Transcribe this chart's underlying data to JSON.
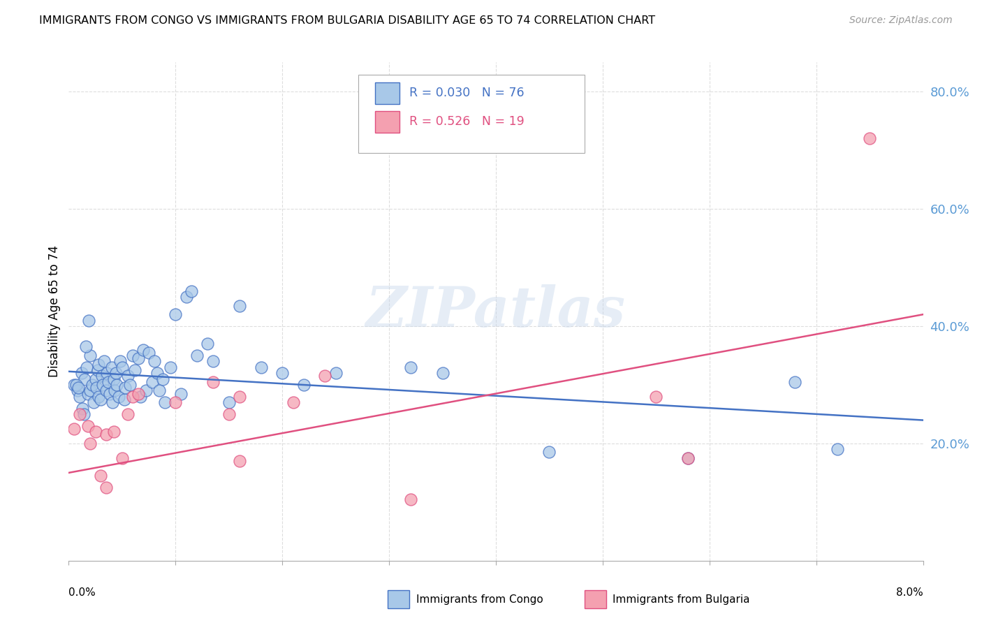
{
  "title": "IMMIGRANTS FROM CONGO VS IMMIGRANTS FROM BULGARIA DISABILITY AGE 65 TO 74 CORRELATION CHART",
  "source": "Source: ZipAtlas.com",
  "ylabel": "Disability Age 65 to 74",
  "legend_label1": "Immigrants from Congo",
  "legend_label2": "Immigrants from Bulgaria",
  "R1": "0.030",
  "N1": "76",
  "R2": "0.526",
  "N2": "19",
  "color1": "#a8c8e8",
  "color2": "#f4a0b0",
  "trendline1_color": "#4472c4",
  "trendline2_color": "#e05080",
  "watermark_text": "ZIPatlas",
  "xlim": [
    0.0,
    8.0
  ],
  "ylim": [
    0.0,
    85.0
  ],
  "yticks_right": [
    20.0,
    40.0,
    60.0,
    80.0
  ],
  "xtick_positions": [
    0.0,
    1.0,
    2.0,
    3.0,
    4.0,
    5.0,
    6.0,
    7.0,
    8.0
  ],
  "congo_x": [
    0.05,
    0.08,
    0.1,
    0.12,
    0.13,
    0.15,
    0.17,
    0.18,
    0.2,
    0.2,
    0.22,
    0.23,
    0.25,
    0.26,
    0.27,
    0.28,
    0.28,
    0.3,
    0.31,
    0.32,
    0.33,
    0.35,
    0.36,
    0.37,
    0.38,
    0.4,
    0.41,
    0.42,
    0.43,
    0.44,
    0.45,
    0.47,
    0.48,
    0.5,
    0.52,
    0.53,
    0.55,
    0.57,
    0.6,
    0.62,
    0.65,
    0.67,
    0.7,
    0.72,
    0.75,
    0.78,
    0.8,
    0.83,
    0.85,
    0.88,
    0.9,
    0.95,
    1.0,
    1.05,
    1.1,
    1.15,
    1.2,
    1.3,
    1.35,
    1.5,
    1.6,
    1.8,
    2.0,
    2.2,
    2.5,
    3.2,
    3.5,
    4.5,
    5.8,
    6.8,
    7.2,
    0.07,
    0.09,
    0.14,
    0.16,
    0.19
  ],
  "congo_y": [
    30.0,
    29.0,
    28.0,
    32.0,
    26.0,
    31.0,
    33.0,
    28.5,
    35.0,
    29.0,
    30.0,
    27.0,
    31.0,
    29.5,
    32.5,
    28.0,
    33.5,
    27.5,
    31.5,
    30.0,
    34.0,
    29.0,
    32.0,
    30.5,
    28.5,
    33.0,
    27.0,
    31.0,
    29.0,
    32.0,
    30.0,
    28.0,
    34.0,
    33.0,
    27.5,
    29.5,
    31.5,
    30.0,
    35.0,
    32.5,
    34.5,
    28.0,
    36.0,
    29.0,
    35.5,
    30.5,
    34.0,
    32.0,
    29.0,
    31.0,
    27.0,
    33.0,
    42.0,
    28.5,
    45.0,
    46.0,
    35.0,
    37.0,
    34.0,
    27.0,
    43.5,
    33.0,
    32.0,
    30.0,
    32.0,
    33.0,
    32.0,
    18.5,
    17.5,
    30.5,
    19.0,
    30.0,
    29.5,
    25.0,
    36.5,
    41.0
  ],
  "bulgaria_x": [
    0.05,
    0.1,
    0.18,
    0.2,
    0.25,
    0.3,
    0.35,
    0.42,
    0.55,
    0.6,
    0.65,
    1.0,
    1.35,
    1.5,
    1.6,
    2.1,
    2.4,
    5.5,
    7.5
  ],
  "bulgaria_y": [
    22.5,
    25.0,
    23.0,
    20.0,
    22.0,
    14.5,
    21.5,
    22.0,
    25.0,
    28.0,
    28.5,
    27.0,
    30.5,
    25.0,
    28.0,
    27.0,
    31.5,
    28.0,
    72.0
  ],
  "bulgaria_x2": [
    0.35,
    0.5,
    1.6,
    3.2,
    5.8
  ],
  "bulgaria_y2": [
    12.5,
    17.5,
    17.0,
    10.5,
    17.5
  ],
  "grid_color": "#dddddd",
  "background_color": "#ffffff"
}
